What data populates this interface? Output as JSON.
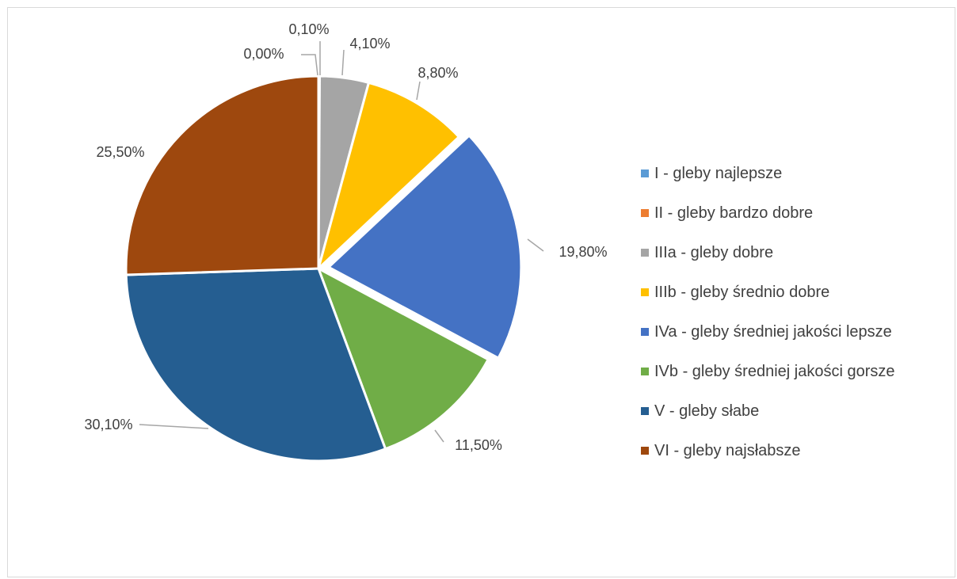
{
  "chart_data": {
    "type": "pie",
    "title": "",
    "legend_position": "right",
    "slices": [
      {
        "name": "I - gleby najlepsze",
        "value": 0.0,
        "label": "0,00%",
        "color": "#5B9BD5"
      },
      {
        "name": "II - gleby bardzo dobre",
        "value": 0.1,
        "label": "0,10%",
        "color": "#ED7D31"
      },
      {
        "name": "IIIa - gleby dobre",
        "value": 4.1,
        "label": "4,10%",
        "color": "#A5A5A5"
      },
      {
        "name": "IIIb - gleby średnio dobre",
        "value": 8.8,
        "label": "8,80%",
        "color": "#FFC000"
      },
      {
        "name": "IVa - gleby średniej jakości lepsze",
        "value": 19.8,
        "label": "19,80%",
        "color": "#4472C4"
      },
      {
        "name": "IVb - gleby średniej jakości gorsze",
        "value": 11.5,
        "label": "11,50%",
        "color": "#70AD47"
      },
      {
        "name": "V - gleby słabe",
        "value": 30.1,
        "label": "30,10%",
        "color": "#255E91"
      },
      {
        "name": "VI - gleby najsłabsze",
        "value": 25.5,
        "label": "25,50%",
        "color": "#9E480E"
      }
    ]
  }
}
